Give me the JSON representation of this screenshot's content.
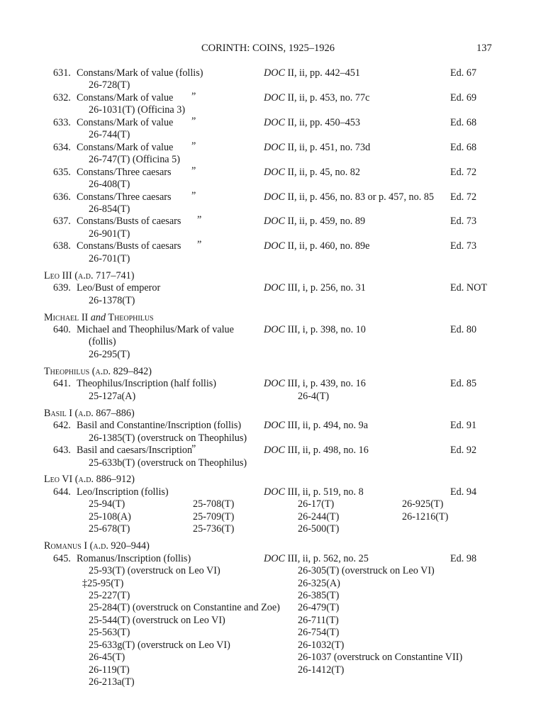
{
  "header": {
    "title": "CORINTH: COINS, 1925–1926",
    "page": "137"
  },
  "sections": [
    {
      "heading": [],
      "entries": [
        {
          "number": "631.",
          "description": [
            "Constans/Mark of value (follis)"
          ],
          "ditto": "",
          "ref_series": "DOC",
          "ref": "II, ii, pp. 442–451",
          "ed": "Ed. 67",
          "specimens": [
            [
              "26-728(T)"
            ]
          ]
        },
        {
          "number": "632.",
          "description": [
            "Constans/Mark of value"
          ],
          "ditto": "”",
          "ref_series": "DOC",
          "ref": "II, ii, p. 453, no. 77c",
          "ed": "Ed. 69",
          "specimens": [
            [
              "26-1031(T) (Officina 3)"
            ]
          ]
        },
        {
          "number": "633.",
          "description": [
            "Constans/Mark of value"
          ],
          "ditto": "”",
          "ref_series": "DOC",
          "ref": "II, ii, pp. 450–453",
          "ed": "Ed. 68",
          "specimens": [
            [
              "26-744(T)"
            ]
          ]
        },
        {
          "number": "634.",
          "description": [
            "Constans/Mark of value"
          ],
          "ditto": "”",
          "ref_series": "DOC",
          "ref": "II, ii, p. 451, no. 73d",
          "ed": "Ed. 68",
          "specimens": [
            [
              "26-747(T) (Officina 5)"
            ]
          ]
        },
        {
          "number": "635.",
          "description": [
            "Constans/Three caesars"
          ],
          "ditto": "”",
          "ref_series": "DOC",
          "ref": "II, ii, p. 45, no. 82",
          "ed": "Ed. 72",
          "specimens": [
            [
              "26-408(T)"
            ]
          ]
        },
        {
          "number": "636.",
          "description": [
            "Constans/Three caesars"
          ],
          "ditto": "”",
          "ref_series": "DOC",
          "ref": "II, ii, p. 456, no. 83 or p. 457, no. 85",
          "ed": "Ed. 72",
          "specimens": [
            [
              "26-854(T)"
            ]
          ]
        },
        {
          "number": "637.",
          "description": [
            "Constans/Busts of caesars"
          ],
          "ditto": "”",
          "ref_series": "DOC",
          "ref": "II, ii, p. 459, no. 89",
          "ed": "Ed. 73",
          "specimens": [
            [
              "26-901(T)"
            ]
          ]
        },
        {
          "number": "638.",
          "description": [
            "Constans/Busts of caesars"
          ],
          "ditto": "”",
          "ref_series": "DOC",
          "ref": "II, ii, p. 460, no. 89e",
          "ed": "Ed. 73",
          "specimens": [
            [
              "26-701(T)"
            ]
          ]
        }
      ]
    },
    {
      "heading": [
        {
          "text": "Leo III",
          "style": "sc"
        },
        {
          "text": " (a.d. 717–741)",
          "style": "sc"
        }
      ],
      "entries": [
        {
          "number": "639.",
          "description": [
            "Leo/Bust of emperor"
          ],
          "ditto": "",
          "ref_series": "DOC",
          "ref": "III, i, p. 256, no. 31",
          "ed": "Ed. NOT",
          "specimens": [
            [
              "26-1378(T)"
            ]
          ]
        }
      ]
    },
    {
      "heading": [
        {
          "text": "Michael II ",
          "style": "sc"
        },
        {
          "text": "and",
          "style": "it"
        },
        {
          "text": " Theophilus",
          "style": "sc"
        }
      ],
      "entries": [
        {
          "number": "640.",
          "description": [
            "Michael and Theophilus/Mark of value",
            "(follis)"
          ],
          "ditto": "",
          "ref_series": "DOC",
          "ref": "III, i, p. 398, no. 10",
          "ed": "Ed. 80",
          "specimens": [
            [
              "26-295(T)"
            ]
          ]
        }
      ]
    },
    {
      "heading": [
        {
          "text": "Theophilus (a.d. 829–842)",
          "style": "sc"
        }
      ],
      "entries": [
        {
          "number": "641.",
          "description": [
            "Theophilus/Inscription (half follis)"
          ],
          "ditto": "",
          "ref_series": "DOC",
          "ref": "III, i, p. 439, no. 16",
          "ed": "Ed. 85",
          "specimens": [
            [
              "25-127a(A)"
            ],
            [
              "26-4(T)"
            ]
          ]
        }
      ]
    },
    {
      "heading": [
        {
          "text": "Basil I (a.d. 867–886)",
          "style": "sc"
        }
      ],
      "entries": [
        {
          "number": "642.",
          "description": [
            "Basil and Constantine/Inscription (follis)"
          ],
          "ditto": "",
          "ref_series": "DOC",
          "ref": "III, ii, p. 494, no. 9a",
          "ed": "Ed. 91",
          "specimens": [
            [
              "26-1385(T) (overstruck on Theophilus)"
            ]
          ]
        },
        {
          "number": "643.",
          "description": [
            "Basil and caesars/Inscription"
          ],
          "ditto": "”",
          "ref_series": "DOC",
          "ref": "III, ii, p. 498, no. 16",
          "ed": "Ed. 92",
          "specimens": [
            [
              "25-633b(T) (overstruck on Theophilus)"
            ]
          ]
        }
      ]
    },
    {
      "heading": [
        {
          "text": "Leo VI (a.d. 886–912)",
          "style": "sc"
        }
      ],
      "entries": [
        {
          "number": "644.",
          "description": [
            "Leo/Inscription (follis)"
          ],
          "ditto": "",
          "ref_series": "DOC",
          "ref": "III, ii, p. 519, no. 8",
          "ed": "Ed. 94",
          "specimens": [
            [
              "25-94(T)",
              "25-108(A)",
              "25-678(T)"
            ],
            [
              "25-708(T)",
              "25-709(T)",
              "25-736(T)"
            ],
            [
              "26-17(T)",
              "26-244(T)",
              "26-500(T)"
            ],
            [
              "26-925(T)",
              "26-1216(T)"
            ]
          ]
        }
      ]
    },
    {
      "heading": [
        {
          "text": "Romanus I (a.d. 920–944)",
          "style": "sc"
        }
      ],
      "entries": [
        {
          "number": "645.",
          "description": [
            "Romanus/Inscription (follis)"
          ],
          "ditto": "",
          "ref_series": "DOC",
          "ref": "III, ii, p. 562, no. 25",
          "ed": "Ed. 98",
          "specimens": [
            [
              "25-93(T) (overstruck on Leo VI)",
              "‡25-95(T)",
              "25-227(T)",
              "25-284(T) (overstruck on Constantine and Zoe)",
              "25-544(T) (overstruck on Leo VI)",
              "25-563(T)",
              "25-633g(T) (overstruck on Leo VI)",
              "26-45(T)",
              "26-119(T)",
              "26-213a(T)"
            ],
            [
              "26-305(T) (overstruck on Leo VI)",
              "26-325(A)",
              "26-385(T)",
              "26-479(T)",
              "26-711(T)",
              "26-754(T)",
              "26-1032(T)",
              "26-1037 (overstruck on Constantine VII)",
              "26-1412(T)"
            ]
          ]
        }
      ]
    }
  ]
}
